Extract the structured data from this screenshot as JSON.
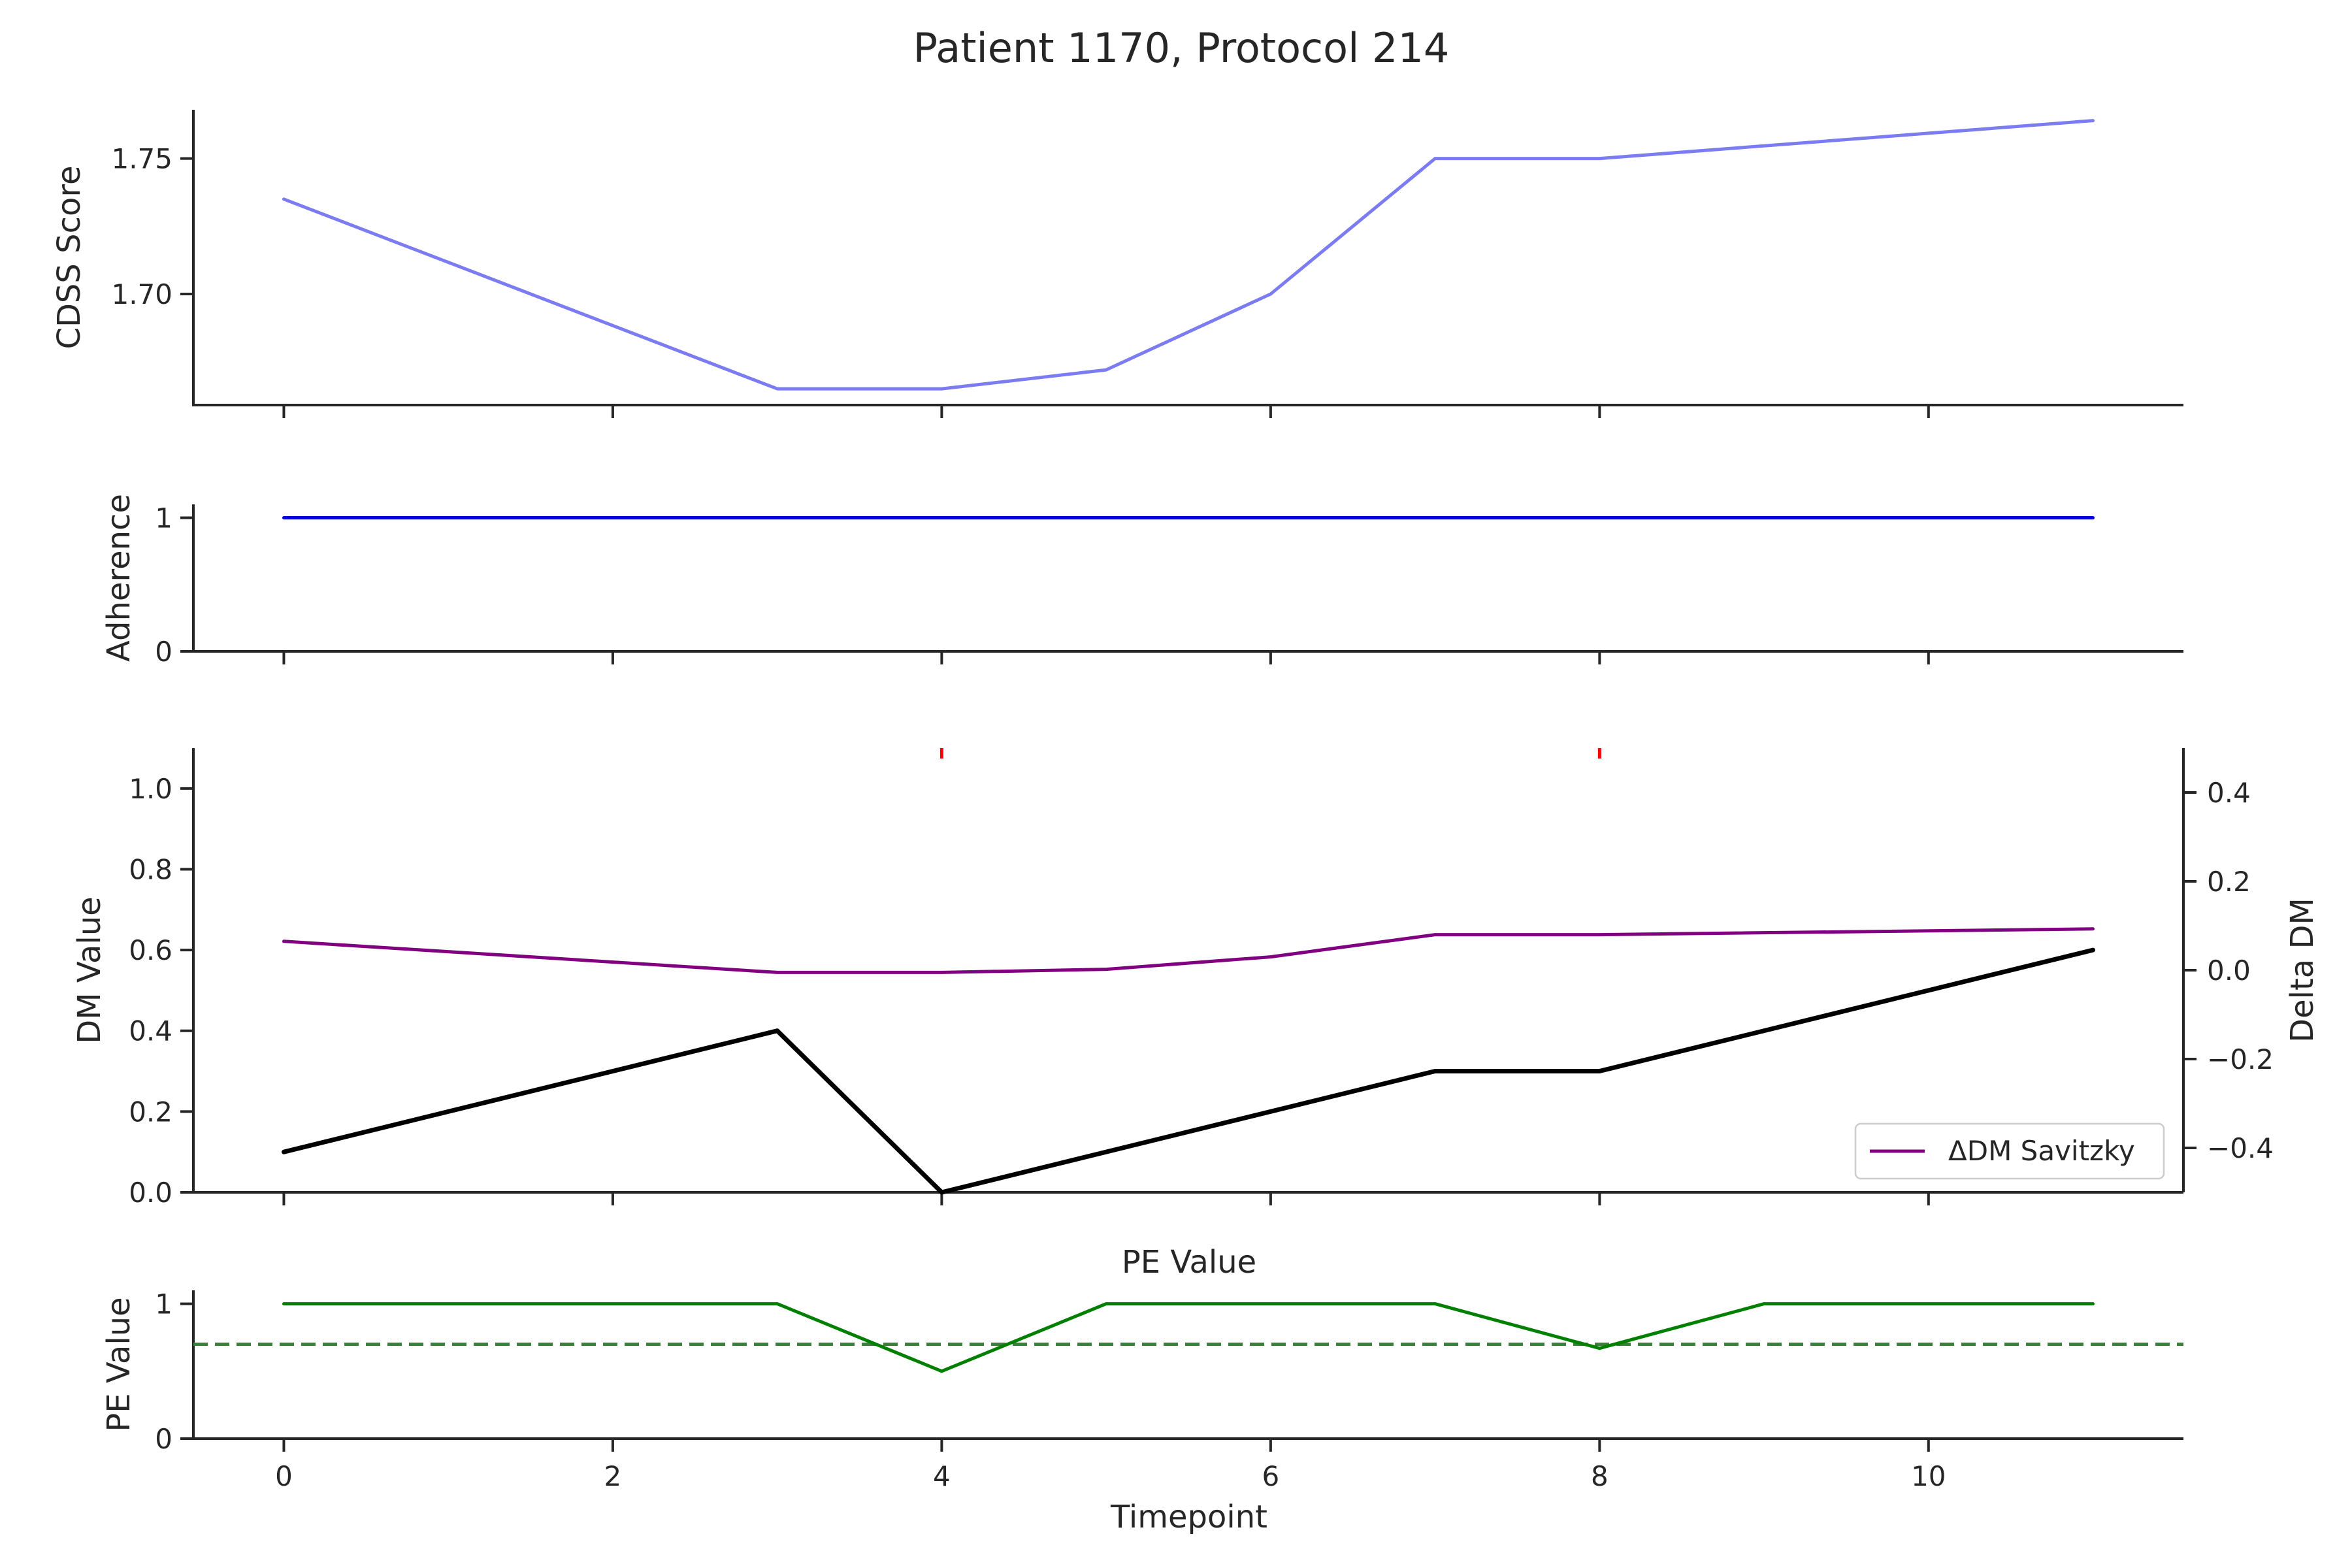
{
  "figure": {
    "title": "Patient 1170, Protocol 214",
    "xlabel": "Timepoint",
    "x_ticks": [
      0,
      2,
      4,
      6,
      8,
      10
    ],
    "xlim": [
      -0.55,
      11.55
    ]
  },
  "colors": {
    "cdss": "#7b7bf2",
    "adherence": "#0000dd",
    "dm": "#000000",
    "delta_dm": "#800080",
    "markers": "#ff0000",
    "pe": "#008000",
    "pe_threshold": "#3a7f3a",
    "axis": "#262626"
  },
  "chart_data": [
    {
      "id": "cdss",
      "type": "line",
      "ylabel": "CDSS Score",
      "x": [
        0,
        3,
        4,
        5,
        6,
        7,
        8,
        11
      ],
      "values": [
        1.735,
        1.665,
        1.665,
        1.672,
        1.7,
        1.75,
        1.75,
        1.764
      ],
      "ylim": [
        1.659,
        1.768
      ],
      "y_ticks": [
        1.7,
        1.75
      ],
      "y_tick_labels": [
        "1.70",
        "1.75"
      ]
    },
    {
      "id": "adherence",
      "type": "line",
      "ylabel": "Adherence",
      "x": [
        0,
        11
      ],
      "values": [
        1,
        1
      ],
      "ylim": [
        0,
        1.1
      ],
      "y_ticks": [
        0,
        1
      ],
      "y_tick_labels": [
        "0",
        "1"
      ]
    },
    {
      "id": "dm",
      "type": "line",
      "ylabel": "DM Value",
      "y2label": "Delta DM",
      "x": [
        0,
        3,
        4,
        7,
        8,
        11
      ],
      "values": [
        0.1,
        0.4,
        0.0,
        0.3,
        0.3,
        0.6
      ],
      "ylim": [
        0,
        1.1
      ],
      "y_ticks": [
        0.0,
        0.2,
        0.4,
        0.6,
        0.8,
        1.0
      ],
      "y_tick_labels": [
        "0.0",
        "0.2",
        "0.4",
        "0.6",
        "0.8",
        "1.0"
      ],
      "y2lim": [
        -0.5,
        0.5
      ],
      "y2_ticks": [
        -0.4,
        -0.2,
        0.0,
        0.2,
        0.4
      ],
      "y2_tick_labels": [
        "−0.4",
        "−0.2",
        "0.0",
        "0.2",
        "0.4"
      ],
      "series": [
        {
          "name": "ΔDM Savitzky",
          "axis": "right",
          "x": [
            0,
            3,
            4,
            5,
            6,
            7,
            8,
            11
          ],
          "values": [
            0.065,
            -0.005,
            -0.005,
            0.002,
            0.03,
            0.08,
            0.08,
            0.093
          ]
        }
      ],
      "event_markers_x": [
        4,
        8
      ],
      "legend": "lower-right"
    },
    {
      "id": "pe",
      "type": "line",
      "title": "PE Value",
      "ylabel": "PE Value",
      "x": [
        0,
        3,
        4,
        5,
        7,
        8,
        9,
        11
      ],
      "values": [
        1.0,
        1.0,
        0.5,
        1.0,
        1.0,
        0.67,
        1.0,
        1.0
      ],
      "threshold": 0.7,
      "ylim": [
        0,
        1.1
      ],
      "y_ticks": [
        0,
        1
      ],
      "y_tick_labels": [
        "0",
        "1"
      ]
    }
  ]
}
